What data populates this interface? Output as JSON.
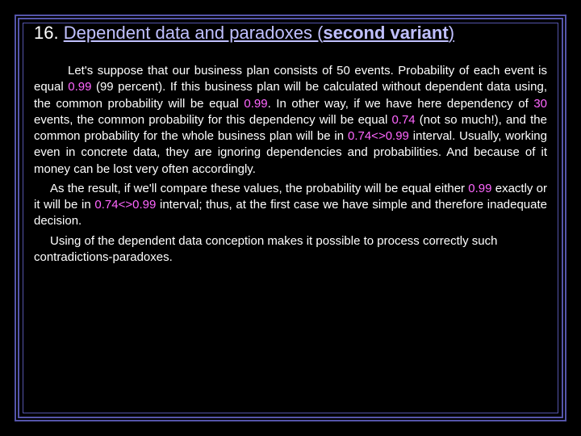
{
  "colors": {
    "background": "#000000",
    "border": "#5555aa",
    "text": "#ffffff",
    "title_underline": "#c0c0ff",
    "highlight": "#ff66ff"
  },
  "typography": {
    "font_family": "Arial, sans-serif",
    "title_fontsize": 22,
    "body_fontsize": 15,
    "line_height": 1.35
  },
  "title": {
    "number": "16.",
    "prefix": "Dependent data and paradoxes (",
    "bold_part": "second variant",
    "suffix": ")"
  },
  "p1": {
    "t1": "Let's suppose that our business plan consists of 50 events. Probability of each event is equal ",
    "v1": "0.99",
    "t2": " (99 percent). If this business plan will be calculated  without dependent data using, the common probability will be equal ",
    "v2": "0.99",
    "t3": ". In other way, if we have here dependency of ",
    "v3": "30",
    "t4": " events, the common probability for this dependency will be equal ",
    "v4": "0.74",
    "t5": " (not so much!), and the common probability for the whole business plan will be in ",
    "v5": "0.74<>0.99",
    "t6": " interval. Usually, working even in concrete data, they are ignoring dependencies and probabilities. And because of it money can be lost very often accordingly."
  },
  "p2": {
    "t1": "As the result, if we'll compare these values, the probability will be equal either ",
    "v1": "0.99",
    "t2": " exactly or it will be in ",
    "v2": "0.74<>0.99",
    "t3": " interval; thus, at the first case we have simple and therefore inadequate decision."
  },
  "p3": {
    "t1": "Using of the dependent data conception makes it possible to process correctly such contradictions-paradoxes."
  }
}
